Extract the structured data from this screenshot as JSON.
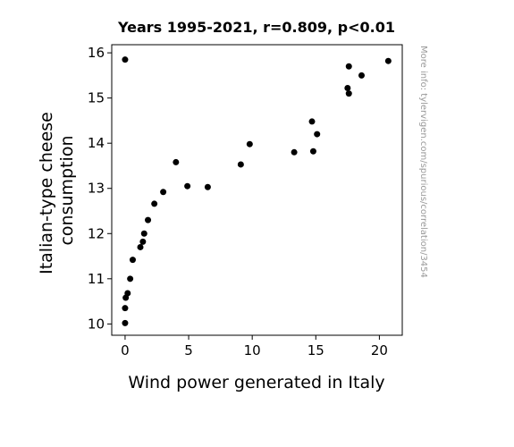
{
  "chart_data": {
    "type": "scatter",
    "title": "Years 1995-2021, r=0.809, p<0.01",
    "xlabel": "Wind power generated in Italy",
    "ylabel": [
      "Italian-type cheese",
      "consumption"
    ],
    "xlim": [
      -1.05,
      21.8
    ],
    "ylim": [
      9.75,
      16.18
    ],
    "xticks": [
      0,
      5,
      10,
      15,
      20
    ],
    "yticks": [
      10,
      11,
      12,
      13,
      14,
      15,
      16
    ],
    "grid": false,
    "marker_color": "#000000",
    "points": [
      {
        "x": 0.0,
        "y": 15.85
      },
      {
        "x": 0.0,
        "y": 10.02
      },
      {
        "x": 0.0,
        "y": 10.35
      },
      {
        "x": 0.05,
        "y": 10.58
      },
      {
        "x": 0.2,
        "y": 10.68
      },
      {
        "x": 0.4,
        "y": 11.0
      },
      {
        "x": 0.6,
        "y": 11.42
      },
      {
        "x": 1.2,
        "y": 11.7
      },
      {
        "x": 1.4,
        "y": 11.82
      },
      {
        "x": 1.5,
        "y": 12.0
      },
      {
        "x": 1.8,
        "y": 12.3
      },
      {
        "x": 2.3,
        "y": 12.66
      },
      {
        "x": 3.0,
        "y": 12.92
      },
      {
        "x": 4.0,
        "y": 13.58
      },
      {
        "x": 4.9,
        "y": 13.05
      },
      {
        "x": 6.5,
        "y": 13.03
      },
      {
        "x": 9.1,
        "y": 13.53
      },
      {
        "x": 9.8,
        "y": 13.98
      },
      {
        "x": 13.3,
        "y": 13.8
      },
      {
        "x": 14.7,
        "y": 14.48
      },
      {
        "x": 14.8,
        "y": 13.82
      },
      {
        "x": 15.1,
        "y": 14.2
      },
      {
        "x": 17.5,
        "y": 15.22
      },
      {
        "x": 17.6,
        "y": 15.1
      },
      {
        "x": 17.6,
        "y": 15.7
      },
      {
        "x": 18.6,
        "y": 15.5
      },
      {
        "x": 20.7,
        "y": 15.82
      }
    ]
  },
  "watermark": "More info: tylervigen.com/spurious/correlation/3454"
}
